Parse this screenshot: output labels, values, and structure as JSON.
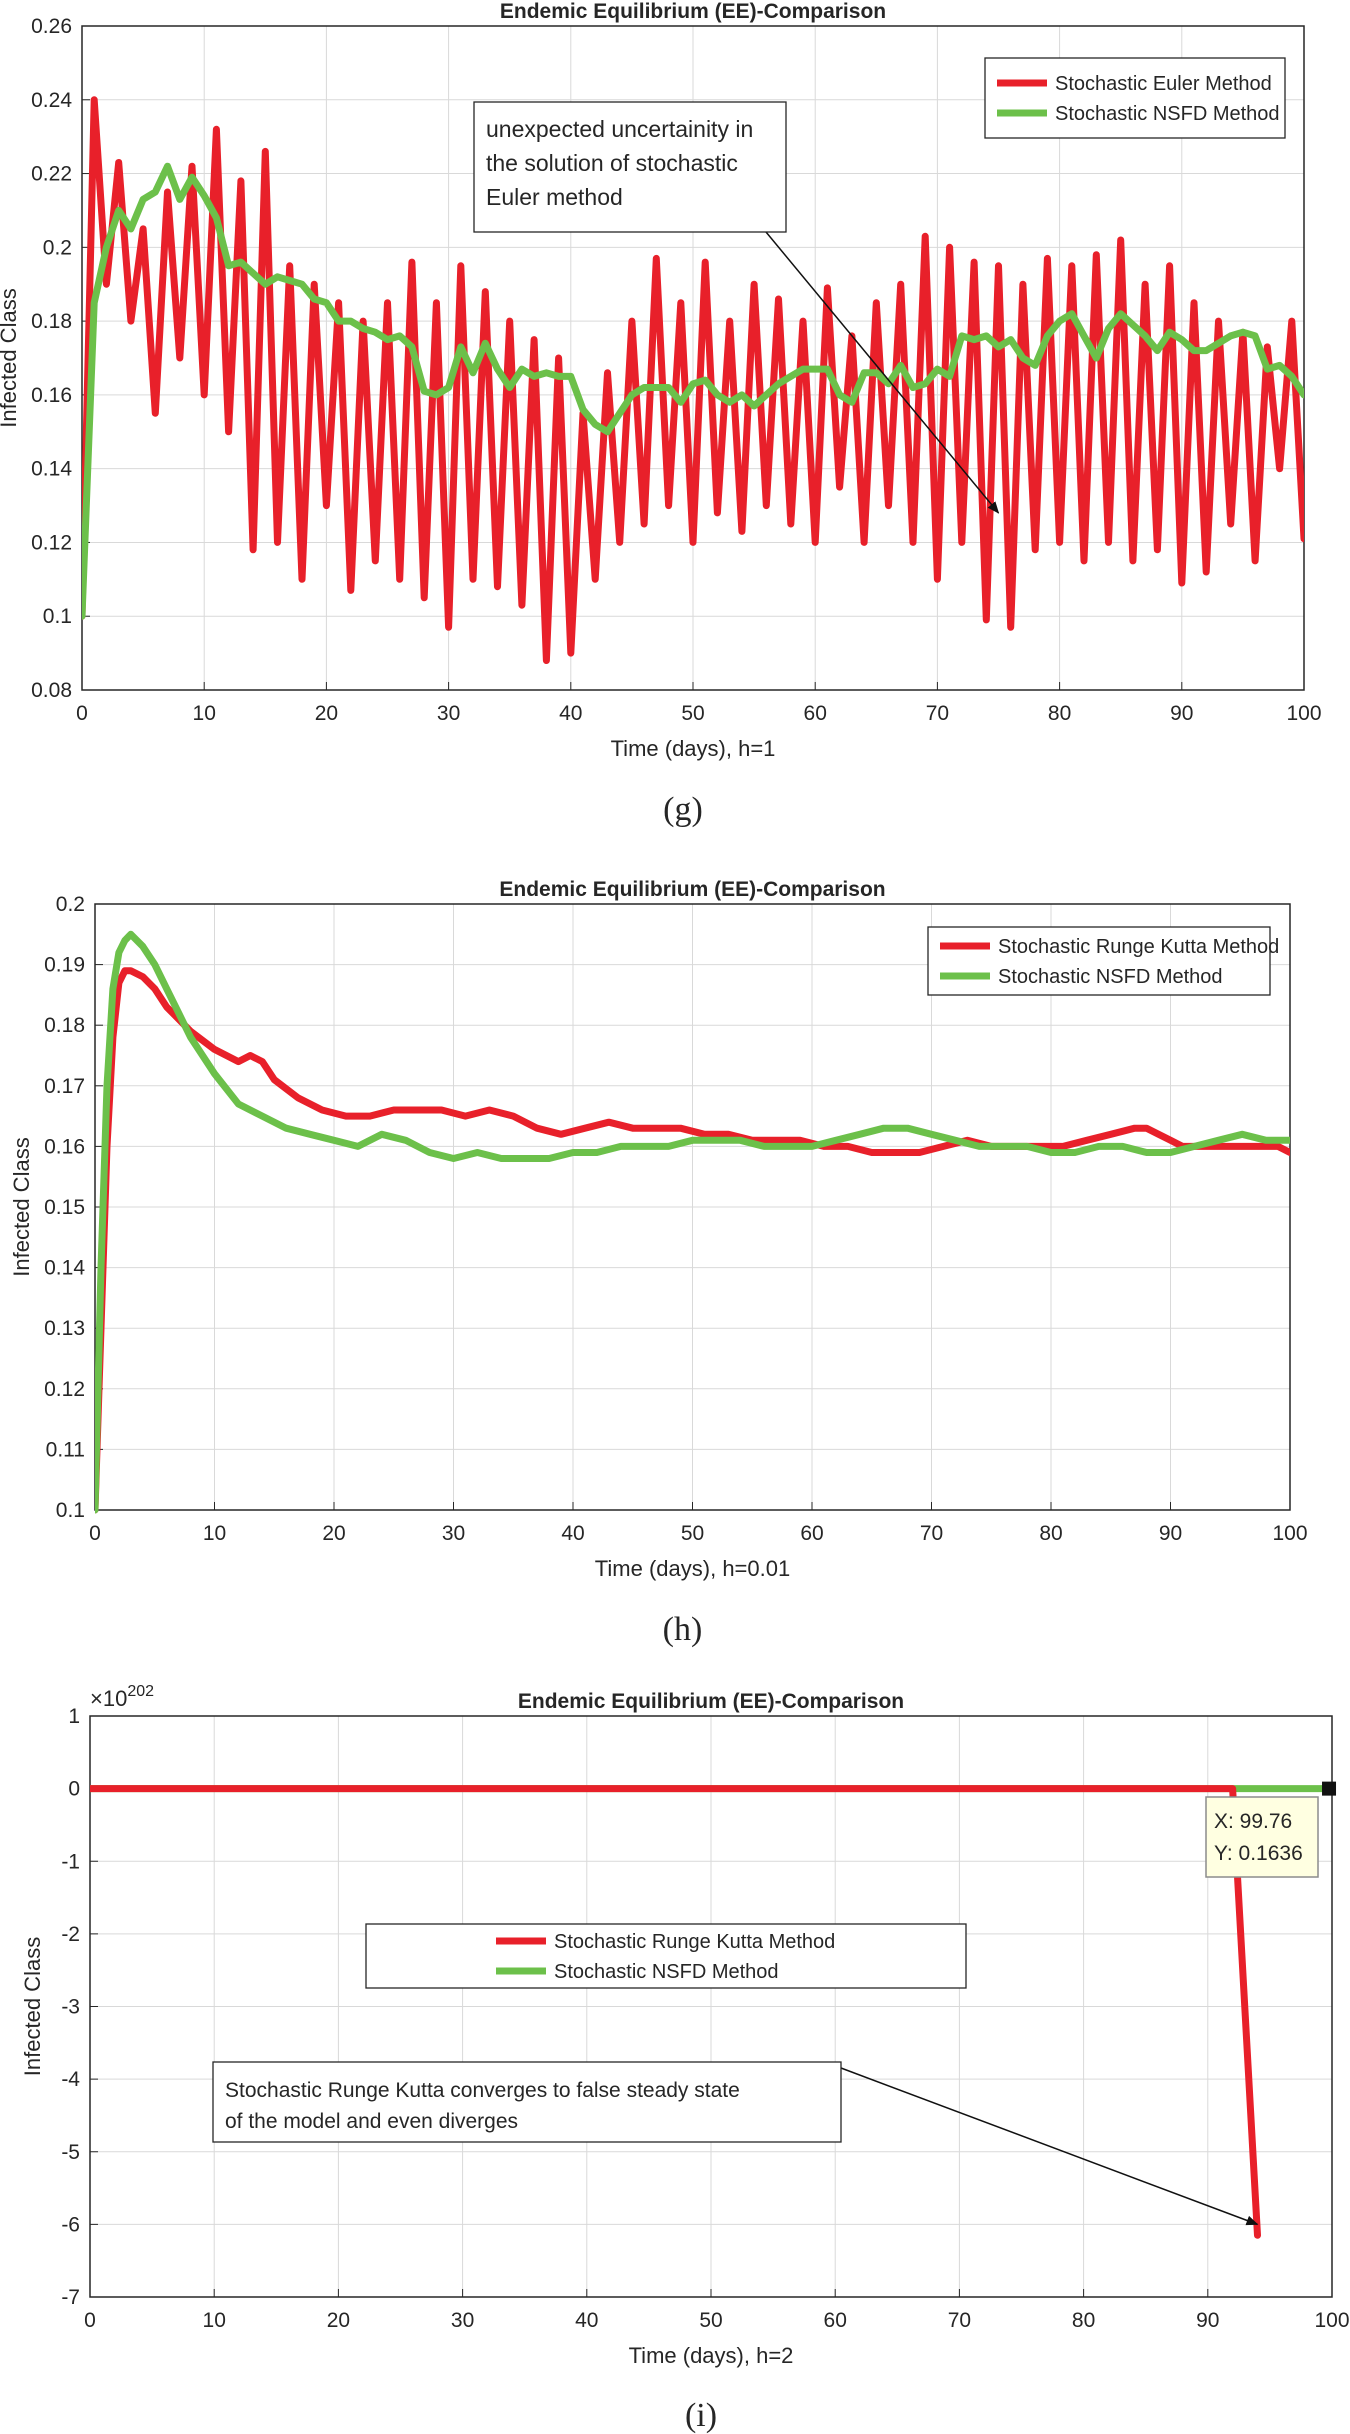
{
  "colors": {
    "red": "#e8202a",
    "green": "#6cc04a",
    "grid": "#d9d9d9",
    "axis": "#262626"
  },
  "chart_data": [
    {
      "id": "g",
      "type": "line",
      "title": "Endemic Equilibrium (EE)-Comparison",
      "xlabel": "Time (days), h=1",
      "ylabel": "Infected Class",
      "caption": "(g)",
      "xlim": [
        0,
        100
      ],
      "ylim": [
        0.08,
        0.26
      ],
      "xticks": [
        "0",
        "10",
        "20",
        "30",
        "40",
        "50",
        "60",
        "70",
        "80",
        "90",
        "100"
      ],
      "yticks": [
        "0.08",
        "0.1",
        "0.12",
        "0.14",
        "0.16",
        "0.18",
        "0.2",
        "0.22",
        "0.24",
        "0.26"
      ],
      "legend": {
        "position": "top-right",
        "entries": [
          "Stochastic Euler Method",
          "Stochastic NSFD Method"
        ]
      },
      "annotation": {
        "lines": [
          "unexpected uncertainity in",
          "the solution of stochastic",
          "Euler method"
        ],
        "arrow_to": [
          75,
          0.128
        ]
      },
      "series": [
        {
          "name": "Stochastic Euler Method",
          "color": "red",
          "x": [
            0,
            1,
            2,
            3,
            4,
            5,
            6,
            7,
            8,
            9,
            10,
            11,
            12,
            13,
            14,
            15,
            16,
            17,
            18,
            19,
            20,
            21,
            22,
            23,
            24,
            25,
            26,
            27,
            28,
            29,
            30,
            31,
            32,
            33,
            34,
            35,
            36,
            37,
            38,
            39,
            40,
            41,
            42,
            43,
            44,
            45,
            46,
            47,
            48,
            49,
            50,
            51,
            52,
            53,
            54,
            55,
            56,
            57,
            58,
            59,
            60,
            61,
            62,
            63,
            64,
            65,
            66,
            67,
            68,
            69,
            70,
            71,
            72,
            73,
            74,
            75,
            76,
            77,
            78,
            79,
            80,
            81,
            82,
            83,
            84,
            85,
            86,
            87,
            88,
            89,
            90,
            91,
            92,
            93,
            94,
            95,
            96,
            97,
            98,
            99,
            100
          ],
          "y": [
            0.1,
            0.24,
            0.19,
            0.223,
            0.18,
            0.205,
            0.155,
            0.215,
            0.17,
            0.222,
            0.16,
            0.232,
            0.15,
            0.218,
            0.118,
            0.226,
            0.12,
            0.195,
            0.11,
            0.19,
            0.13,
            0.185,
            0.107,
            0.18,
            0.115,
            0.185,
            0.11,
            0.196,
            0.105,
            0.185,
            0.097,
            0.195,
            0.11,
            0.188,
            0.108,
            0.18,
            0.103,
            0.175,
            0.088,
            0.17,
            0.09,
            0.155,
            0.11,
            0.166,
            0.12,
            0.18,
            0.125,
            0.197,
            0.13,
            0.185,
            0.12,
            0.196,
            0.128,
            0.18,
            0.123,
            0.19,
            0.13,
            0.186,
            0.125,
            0.18,
            0.12,
            0.189,
            0.135,
            0.176,
            0.12,
            0.185,
            0.13,
            0.19,
            0.12,
            0.203,
            0.11,
            0.2,
            0.12,
            0.196,
            0.099,
            0.195,
            0.097,
            0.19,
            0.118,
            0.197,
            0.12,
            0.195,
            0.115,
            0.198,
            0.12,
            0.202,
            0.115,
            0.19,
            0.118,
            0.195,
            0.109,
            0.185,
            0.112,
            0.18,
            0.125,
            0.177,
            0.115,
            0.173,
            0.14,
            0.18,
            0.121
          ]
        },
        {
          "name": "Stochastic NSFD Method",
          "color": "green",
          "x": [
            0,
            1,
            2,
            3,
            4,
            5,
            6,
            7,
            8,
            9,
            10,
            11,
            12,
            13,
            14,
            15,
            16,
            17,
            18,
            19,
            20,
            21,
            22,
            23,
            24,
            25,
            26,
            27,
            28,
            29,
            30,
            31,
            32,
            33,
            34,
            35,
            36,
            37,
            38,
            39,
            40,
            41,
            42,
            43,
            44,
            45,
            46,
            47,
            48,
            49,
            50,
            51,
            52,
            53,
            54,
            55,
            56,
            57,
            58,
            59,
            60,
            61,
            62,
            63,
            64,
            65,
            66,
            67,
            68,
            69,
            70,
            71,
            72,
            73,
            74,
            75,
            76,
            77,
            78,
            79,
            80,
            81,
            82,
            83,
            84,
            85,
            86,
            87,
            88,
            89,
            90,
            91,
            92,
            93,
            94,
            95,
            96,
            97,
            98,
            99,
            100
          ],
          "y": [
            0.1,
            0.185,
            0.2,
            0.21,
            0.205,
            0.213,
            0.215,
            0.222,
            0.213,
            0.219,
            0.214,
            0.208,
            0.195,
            0.196,
            0.193,
            0.19,
            0.192,
            0.191,
            0.19,
            0.186,
            0.185,
            0.18,
            0.18,
            0.178,
            0.177,
            0.175,
            0.176,
            0.173,
            0.161,
            0.16,
            0.162,
            0.173,
            0.166,
            0.174,
            0.167,
            0.162,
            0.167,
            0.165,
            0.166,
            0.165,
            0.165,
            0.156,
            0.152,
            0.15,
            0.155,
            0.16,
            0.162,
            0.162,
            0.162,
            0.158,
            0.163,
            0.164,
            0.16,
            0.158,
            0.16,
            0.157,
            0.16,
            0.163,
            0.165,
            0.167,
            0.167,
            0.167,
            0.16,
            0.158,
            0.166,
            0.166,
            0.163,
            0.168,
            0.162,
            0.163,
            0.167,
            0.165,
            0.176,
            0.175,
            0.176,
            0.173,
            0.175,
            0.17,
            0.168,
            0.176,
            0.18,
            0.182,
            0.176,
            0.17,
            0.178,
            0.182,
            0.179,
            0.176,
            0.172,
            0.177,
            0.175,
            0.172,
            0.172,
            0.174,
            0.176,
            0.177,
            0.176,
            0.167,
            0.168,
            0.165,
            0.16
          ]
        }
      ]
    },
    {
      "id": "h",
      "type": "line",
      "title": "Endemic Equilibrium (EE)-Comparison",
      "xlabel": "Time (days), h=0.01",
      "ylabel": "Infected Class",
      "caption": "(h)",
      "xlim": [
        0,
        100
      ],
      "ylim": [
        0.1,
        0.2
      ],
      "xticks": [
        "0",
        "10",
        "20",
        "30",
        "40",
        "50",
        "60",
        "70",
        "80",
        "90",
        "100"
      ],
      "yticks": [
        "0.1",
        "0.11",
        "0.12",
        "0.13",
        "0.14",
        "0.15",
        "0.16",
        "0.17",
        "0.18",
        "0.19",
        "0.2"
      ],
      "legend": {
        "position": "top-right",
        "entries": [
          "Stochastic Runge Kutta Method",
          "Stochastic NSFD Method"
        ]
      },
      "series": [
        {
          "name": "Stochastic Runge Kutta Method",
          "color": "red",
          "x": [
            0,
            0.5,
            1,
            1.5,
            2,
            2.5,
            3,
            4,
            5,
            6,
            7,
            8,
            10,
            12,
            13,
            14,
            15,
            17,
            19,
            21,
            23,
            25,
            27,
            29,
            31,
            33,
            35,
            37,
            39,
            41,
            43,
            45,
            47,
            49,
            51,
            53,
            55,
            57,
            59,
            61,
            63,
            65,
            67,
            69,
            71,
            73,
            75,
            77,
            79,
            81,
            83,
            85,
            87,
            88,
            89,
            90,
            91,
            93,
            95,
            97,
            99,
            100
          ],
          "y": [
            0.1,
            0.13,
            0.16,
            0.178,
            0.187,
            0.189,
            0.189,
            0.188,
            0.186,
            0.183,
            0.181,
            0.179,
            0.176,
            0.174,
            0.175,
            0.174,
            0.171,
            0.168,
            0.166,
            0.165,
            0.165,
            0.166,
            0.166,
            0.166,
            0.165,
            0.166,
            0.165,
            0.163,
            0.162,
            0.163,
            0.164,
            0.163,
            0.163,
            0.163,
            0.162,
            0.162,
            0.161,
            0.161,
            0.161,
            0.16,
            0.16,
            0.159,
            0.159,
            0.159,
            0.16,
            0.161,
            0.16,
            0.16,
            0.16,
            0.16,
            0.161,
            0.162,
            0.163,
            0.163,
            0.162,
            0.161,
            0.16,
            0.16,
            0.16,
            0.16,
            0.16,
            0.159
          ]
        },
        {
          "name": "Stochastic NSFD Method",
          "color": "green",
          "x": [
            0,
            0.5,
            1,
            1.5,
            2,
            2.5,
            3,
            4,
            5,
            6,
            7,
            8,
            10,
            12,
            14,
            16,
            18,
            20,
            22,
            24,
            26,
            28,
            30,
            32,
            34,
            36,
            38,
            40,
            42,
            44,
            46,
            48,
            50,
            52,
            54,
            56,
            58,
            60,
            62,
            64,
            66,
            68,
            70,
            72,
            74,
            76,
            78,
            80,
            82,
            84,
            86,
            88,
            90,
            92,
            94,
            96,
            98,
            100
          ],
          "y": [
            0.1,
            0.14,
            0.17,
            0.186,
            0.192,
            0.194,
            0.195,
            0.193,
            0.19,
            0.186,
            0.182,
            0.178,
            0.172,
            0.167,
            0.165,
            0.163,
            0.162,
            0.161,
            0.16,
            0.162,
            0.161,
            0.159,
            0.158,
            0.159,
            0.158,
            0.158,
            0.158,
            0.159,
            0.159,
            0.16,
            0.16,
            0.16,
            0.161,
            0.161,
            0.161,
            0.16,
            0.16,
            0.16,
            0.161,
            0.162,
            0.163,
            0.163,
            0.162,
            0.161,
            0.16,
            0.16,
            0.16,
            0.159,
            0.159,
            0.16,
            0.16,
            0.159,
            0.159,
            0.16,
            0.161,
            0.162,
            0.161,
            0.161
          ]
        }
      ]
    },
    {
      "id": "i",
      "type": "line",
      "title": "Endemic Equilibrium (EE)-Comparison",
      "xlabel": "Time (days), h=2",
      "ylabel": "Infected Class",
      "caption": "(i)",
      "exponent_label": "×10",
      "exponent_power": "202",
      "xlim": [
        0,
        100
      ],
      "ylim": [
        -7,
        1
      ],
      "xticks": [
        "0",
        "10",
        "20",
        "30",
        "40",
        "50",
        "60",
        "70",
        "80",
        "90",
        "100"
      ],
      "yticks": [
        "-7",
        "-6",
        "-5",
        "-4",
        "-3",
        "-2",
        "-1",
        "0",
        "1"
      ],
      "legend": {
        "position": "center-left",
        "entries": [
          "Stochastic Runge Kutta Method",
          "Stochastic NSFD Method"
        ]
      },
      "datatip": {
        "x_text": "X: 99.76",
        "y_text": "Y: 0.1636",
        "x": 99.76,
        "y": 0
      },
      "annotation": {
        "lines": [
          "Stochastic Runge Kutta converges to false steady state",
          "of the model and even diverges"
        ],
        "arrow_to": [
          94,
          -6.0
        ]
      },
      "series": [
        {
          "name": "Stochastic Runge Kutta Method",
          "color": "red",
          "x": [
            0,
            92,
            94
          ],
          "y": [
            0,
            0,
            -6.15
          ]
        },
        {
          "name": "Stochastic NSFD Method",
          "color": "green",
          "x": [
            0,
            100
          ],
          "y": [
            0,
            0
          ]
        }
      ]
    }
  ]
}
